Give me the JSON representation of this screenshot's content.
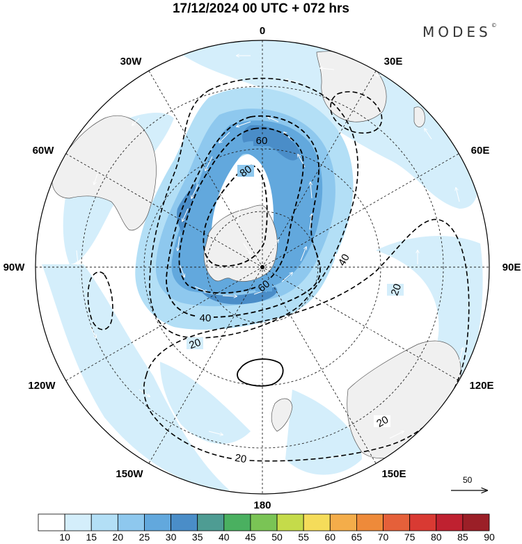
{
  "title": "17/12/2024  00 UTC  + 072 hrs",
  "brand": "MODES",
  "brand_mark": "©",
  "longitude_labels": [
    "0",
    "30E",
    "60E",
    "90E",
    "120E",
    "150E",
    "180",
    "150W",
    "120W",
    "90W",
    "60W",
    "30W"
  ],
  "contour_labels": [
    "60",
    "80",
    "60",
    "40",
    "40",
    "20",
    "20",
    "20",
    "20"
  ],
  "scale_arrow": {
    "value": "50"
  },
  "colorbar": {
    "ticks": [
      "10",
      "15",
      "20",
      "25",
      "30",
      "35",
      "40",
      "45",
      "50",
      "55",
      "60",
      "65",
      "70",
      "75",
      "80",
      "85",
      "90"
    ],
    "colors": [
      "#ffffff",
      "#d4eefb",
      "#b3dff6",
      "#8ec8ee",
      "#62a8dd",
      "#4a8dc8",
      "#4e9c93",
      "#4ab060",
      "#7ac455",
      "#c5db4a",
      "#f5dc5a",
      "#f4ad4a",
      "#ee8a3a",
      "#e5603a",
      "#d93a33",
      "#bf2130",
      "#9b1f27"
    ]
  },
  "colors": {
    "land": "#f0f0f0",
    "jet_core": "#4a8dc8",
    "contour": "#000000"
  }
}
